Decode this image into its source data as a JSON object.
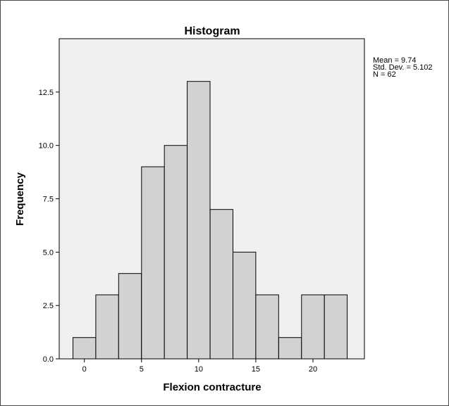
{
  "chart_data": {
    "type": "bar",
    "title": "Histogram",
    "xlabel": "Flexion contracture",
    "ylabel": "Frequency",
    "bin_width": 2,
    "bins": [
      {
        "x0": -1,
        "x1": 1,
        "count": 1
      },
      {
        "x0": 1,
        "x1": 3,
        "count": 3
      },
      {
        "x0": 3,
        "x1": 5,
        "count": 4
      },
      {
        "x0": 5,
        "x1": 7,
        "count": 9
      },
      {
        "x0": 7,
        "x1": 9,
        "count": 10
      },
      {
        "x0": 9,
        "x1": 11,
        "count": 13
      },
      {
        "x0": 11,
        "x1": 13,
        "count": 7
      },
      {
        "x0": 13,
        "x1": 15,
        "count": 5
      },
      {
        "x0": 15,
        "x1": 17,
        "count": 3
      },
      {
        "x0": 17,
        "x1": 19,
        "count": 1
      },
      {
        "x0": 19,
        "x1": 21,
        "count": 3
      },
      {
        "x0": 21,
        "x1": 23,
        "count": 3
      }
    ],
    "xlim": [
      -2.2,
      24.5
    ],
    "ylim": [
      0,
      15
    ],
    "x_ticks": [
      0,
      5,
      10,
      15,
      20
    ],
    "x_tick_labels": [
      "0",
      "5",
      "10",
      "15",
      "20"
    ],
    "y_ticks": [
      0,
      2.5,
      5,
      7.5,
      10,
      12.5
    ],
    "y_tick_labels": [
      "0.0",
      "2.5",
      "5.0",
      "7.5",
      "10.0",
      "12.5"
    ],
    "grid": false,
    "stats": {
      "mean": "Mean = 9.74",
      "std": "Std. Dev. = 5.102",
      "n": "N = 62"
    },
    "colors": {
      "bar_fill": "#d2d2d2",
      "plot_background": "#f0f0f0"
    }
  }
}
